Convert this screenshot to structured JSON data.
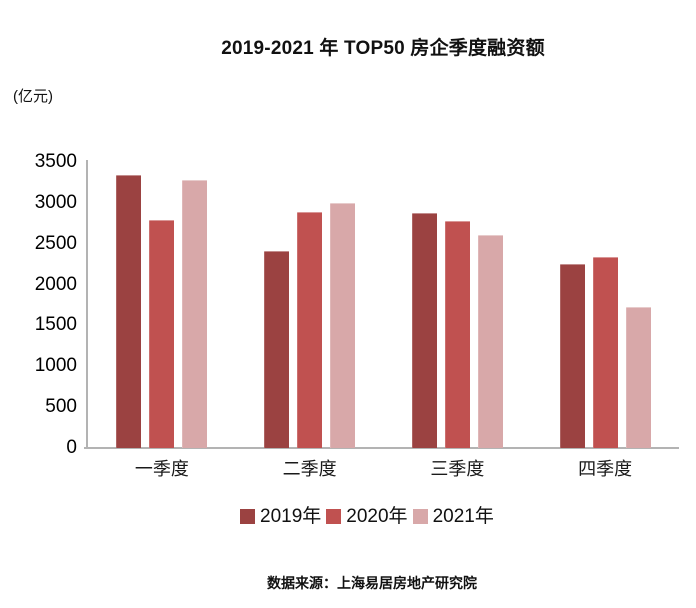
{
  "chart_data": {
    "type": "bar",
    "title": "2019-2021 年 TOP50 房企季度融资额",
    "unit_label": "(亿元)",
    "categories": [
      "一季度",
      "二季度",
      "三季度",
      "四季度"
    ],
    "series": [
      {
        "name": "2019年",
        "color": "#9B4241",
        "values": [
          3340,
          2410,
          2880,
          2250
        ]
      },
      {
        "name": "2020年",
        "color": "#C05150",
        "values": [
          2790,
          2890,
          2780,
          2340
        ]
      },
      {
        "name": "2021年",
        "color": "#D8A8A9",
        "values": [
          3280,
          3000,
          2610,
          1730
        ]
      }
    ],
    "ylim": [
      0,
      3500
    ],
    "yticks": [
      0,
      500,
      1000,
      1500,
      2000,
      2500,
      3000,
      3500
    ],
    "grid": false,
    "legend_position": "bottom"
  },
  "source": {
    "text": "数据来源：上海易居房地产研究院"
  },
  "colors": {
    "axis": "#B3B3B3"
  }
}
